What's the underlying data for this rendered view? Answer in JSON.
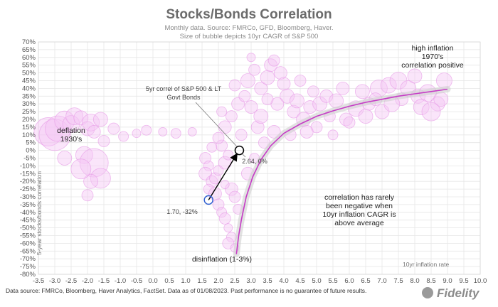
{
  "header": {
    "title": "Stocks/Bonds Correlation",
    "subtitle_line1": "Monthly data.  Source: FMRCo, GFD, Bloomberg, Haver.",
    "subtitle_line2": "Size of bubble depicts 10yr CAGR of S&P 500"
  },
  "footer": {
    "source": "Data source: FMRCo, Bloomberg, Haver Analytics, FactSet. Data as of 01/08/2023. Past performance is no guarantee of future results.",
    "logo": "Fidelity"
  },
  "colors": {
    "bubble_fill": "#f4c6f4",
    "bubble_stroke": "#e79be7",
    "curve": "#c63bc6",
    "arrow": "#000000",
    "start_marker": "#2f5fd0"
  },
  "annotations": {
    "high_inflation_line1": "high inflation",
    "high_inflation_line2": "1970's",
    "high_inflation_line3": "correlation positive",
    "deflation_line1": "deflation",
    "deflation_line2": "1930's",
    "fivey_line1": "5yr correl of S&P 500 & LT",
    "fivey_line2": "Govt Bonds",
    "point_now": "2.64, 0%",
    "point_start": "1.70, -32%",
    "disinflation": "disinflation (1-3%)",
    "rarely_line1": "correlation has rarely",
    "rarely_line2": "been negative when",
    "rarely_line3": "10yr inflation CAGR is",
    "rarely_line4": "above average"
  },
  "chart_data": {
    "type": "scatter",
    "title": "Stocks/Bonds Correlation",
    "xlabel": "10yr inflation rate",
    "ylabel": "5-year stocks/bonds correlation",
    "xlim": [
      -3.5,
      10.0
    ],
    "ylim": [
      -80,
      70
    ],
    "x_ticks": [
      "-3.5",
      "-3.0",
      "-2.5",
      "-2.0",
      "-1.5",
      "-1.0",
      "-0.5",
      "0.0",
      "0.5",
      "1.0",
      "1.5",
      "2.0",
      "2.5",
      "3.0",
      "3.5",
      "4.0",
      "4.5",
      "5.0",
      "5.5",
      "6.0",
      "6.5",
      "7.0",
      "7.5",
      "8.0",
      "8.5",
      "9.0",
      "9.5",
      "10.0"
    ],
    "y_ticks": [
      "70%",
      "65%",
      "60%",
      "55%",
      "50%",
      "45%",
      "40%",
      "35%",
      "30%",
      "25%",
      "20%",
      "15%",
      "10%",
      "5%",
      "0%",
      "-5%",
      "-10%",
      "-15%",
      "-20%",
      "-25%",
      "-30%",
      "-35%",
      "-40%",
      "-45%",
      "-50%",
      "-55%",
      "-60%",
      "-65%",
      "-70%",
      "-75%",
      "-80%"
    ],
    "grid": true,
    "fit_curve": [
      [
        2.55,
        -67
      ],
      [
        2.62,
        -55
      ],
      [
        2.7,
        -45
      ],
      [
        2.85,
        -30
      ],
      [
        3.05,
        -17
      ],
      [
        3.3,
        -6
      ],
      [
        3.6,
        3
      ],
      [
        4.0,
        11
      ],
      [
        4.5,
        17
      ],
      [
        5.0,
        22
      ],
      [
        5.5,
        25.5
      ],
      [
        6.0,
        28.5
      ],
      [
        6.5,
        31
      ],
      [
        7.0,
        33
      ],
      [
        7.5,
        35
      ],
      [
        8.0,
        36.5
      ],
      [
        8.5,
        38
      ],
      [
        9.0,
        39.5
      ]
    ],
    "arrow": {
      "from": [
        1.7,
        -32
      ],
      "to": [
        2.64,
        0
      ]
    },
    "bubbles": [
      [
        -3.2,
        12,
        20
      ],
      [
        -3.0,
        10,
        22
      ],
      [
        -2.9,
        14,
        18
      ],
      [
        -2.7,
        19,
        14
      ],
      [
        -2.5,
        17,
        12
      ],
      [
        -2.4,
        22,
        12
      ],
      [
        -2.2,
        21,
        10
      ],
      [
        -2.0,
        14,
        10
      ],
      [
        -1.9,
        18,
        12
      ],
      [
        -1.8,
        12,
        9
      ],
      [
        -1.6,
        20,
        10
      ],
      [
        -1.5,
        6,
        8
      ],
      [
        -1.2,
        14,
        8
      ],
      [
        -0.9,
        9,
        7
      ],
      [
        -0.5,
        11,
        6
      ],
      [
        -0.2,
        13,
        7
      ],
      [
        0.3,
        12,
        6
      ],
      [
        0.7,
        11,
        7
      ],
      [
        1.2,
        12,
        6
      ],
      [
        -2.1,
        -3,
        12
      ],
      [
        -1.8,
        -8,
        20
      ],
      [
        -1.6,
        -18,
        14
      ],
      [
        -1.9,
        -20,
        10
      ],
      [
        -2.2,
        -12,
        14
      ],
      [
        -2.0,
        -29,
        8
      ],
      [
        -2.7,
        -5,
        10
      ],
      [
        1.6,
        -5,
        8
      ],
      [
        1.7,
        -10,
        7
      ],
      [
        1.6,
        -15,
        9
      ],
      [
        1.8,
        -20,
        8
      ],
      [
        1.7,
        -25,
        7
      ],
      [
        1.9,
        -28,
        9
      ],
      [
        2.0,
        -35,
        8
      ],
      [
        2.1,
        -40,
        7
      ],
      [
        2.2,
        -44,
        8
      ],
      [
        2.3,
        -50,
        6
      ],
      [
        2.4,
        -56,
        7
      ],
      [
        2.3,
        -60,
        8
      ],
      [
        2.5,
        -63,
        6
      ],
      [
        1.9,
        -18,
        8
      ],
      [
        2.0,
        -13,
        7
      ],
      [
        2.2,
        -8,
        9
      ],
      [
        2.3,
        -3,
        7
      ],
      [
        2.1,
        3,
        8
      ],
      [
        1.8,
        2,
        7
      ],
      [
        2.4,
        -25,
        9
      ],
      [
        2.5,
        -30,
        8
      ],
      [
        2.6,
        -38,
        7
      ],
      [
        2.2,
        -22,
        6
      ],
      [
        2.0,
        8,
        8
      ],
      [
        2.2,
        15,
        9
      ],
      [
        2.4,
        22,
        8
      ],
      [
        2.1,
        25,
        7
      ],
      [
        2.6,
        30,
        9
      ],
      [
        2.8,
        35,
        8
      ],
      [
        2.9,
        45,
        10
      ],
      [
        3.1,
        52,
        8
      ],
      [
        3.3,
        40,
        9
      ],
      [
        3.5,
        47,
        10
      ],
      [
        3.6,
        55,
        9
      ],
      [
        3.7,
        58,
        8
      ],
      [
        3.9,
        50,
        9
      ],
      [
        4.1,
        35,
        10
      ],
      [
        4.3,
        25,
        9
      ],
      [
        4.6,
        20,
        10
      ],
      [
        4.8,
        28,
        9
      ],
      [
        5.1,
        30,
        10
      ],
      [
        5.3,
        35,
        9
      ],
      [
        5.6,
        32,
        10
      ],
      [
        5.9,
        20,
        9
      ],
      [
        6.2,
        27,
        11
      ],
      [
        6.4,
        38,
        10
      ],
      [
        6.6,
        30,
        9
      ],
      [
        6.9,
        40,
        12
      ],
      [
        7.2,
        42,
        11
      ],
      [
        7.5,
        45,
        12
      ],
      [
        7.8,
        40,
        11
      ],
      [
        8.1,
        35,
        10
      ],
      [
        8.4,
        37,
        12
      ],
      [
        8.7,
        30,
        10
      ],
      [
        8.9,
        45,
        11
      ],
      [
        3.2,
        15,
        9
      ],
      [
        3.4,
        5,
        8
      ],
      [
        3.1,
        -5,
        7
      ],
      [
        2.9,
        -15,
        9
      ],
      [
        3.3,
        22,
        10
      ],
      [
        3.8,
        30,
        9
      ],
      [
        4.2,
        10,
        8
      ],
      [
        4.5,
        45,
        8
      ],
      [
        5.0,
        15,
        8
      ],
      [
        5.5,
        10,
        7
      ],
      [
        6.0,
        18,
        8
      ],
      [
        7.0,
        25,
        10
      ],
      [
        7.6,
        33,
        9
      ],
      [
        8.2,
        28,
        11
      ],
      [
        8.8,
        33,
        10
      ],
      [
        2.7,
        10,
        8
      ],
      [
        3.0,
        28,
        9
      ],
      [
        3.5,
        33,
        8
      ],
      [
        4.0,
        43,
        9
      ],
      [
        4.7,
        12,
        9
      ],
      [
        5.4,
        22,
        8
      ],
      [
        6.5,
        22,
        10
      ],
      [
        7.3,
        30,
        11
      ],
      [
        8.5,
        25,
        13
      ],
      [
        3.7,
        12,
        9
      ],
      [
        4.4,
        32,
        10
      ],
      [
        5.8,
        40,
        9
      ],
      [
        6.8,
        33,
        9
      ],
      [
        2.5,
        42,
        8
      ],
      [
        3.0,
        60,
        6
      ],
      [
        4.9,
        38,
        8
      ],
      [
        8.0,
        48,
        10
      ]
    ]
  }
}
